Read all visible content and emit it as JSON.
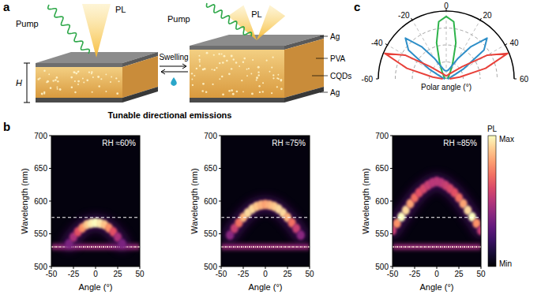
{
  "panels": [
    "a",
    "b",
    "c"
  ],
  "diagram": {
    "pump": "Pump",
    "pl": "PL",
    "height": "H",
    "process": "Swelling",
    "layers": [
      "Ag",
      "PVA",
      "CQDs",
      "Ag"
    ],
    "caption": "Tunable directional emissions"
  },
  "chart_data": [
    {
      "type": "heatmap",
      "annotation": "RH ≈60%",
      "xlabel": "Angle (°)",
      "ylabel": "Wavelength (nm)",
      "xlim": [
        -50,
        50
      ],
      "xticks": [
        -50,
        -25,
        0,
        25,
        50
      ],
      "ylim": [
        500,
        700
      ],
      "yticks": [
        500,
        550,
        600,
        650,
        700
      ],
      "x": [
        -30,
        -25,
        -20,
        -15,
        -10,
        -5,
        0,
        5,
        10,
        15,
        20,
        25,
        30
      ],
      "values": [
        535,
        545,
        553,
        559,
        564,
        566,
        567,
        566,
        564,
        559,
        553,
        545,
        535
      ],
      "intensity": [
        0.15,
        0.3,
        0.5,
        0.7,
        0.85,
        0.95,
        1,
        0.95,
        0.85,
        0.7,
        0.5,
        0.3,
        0.15
      ],
      "pump_wavelength": 530,
      "reference_line": 575
    },
    {
      "type": "heatmap",
      "annotation": "RH ≈75%",
      "xlabel": "Angle (°)",
      "ylabel": "Wavelength (nm)",
      "xlim": [
        -50,
        50
      ],
      "xticks": [
        -50,
        -25,
        0,
        25,
        50
      ],
      "ylim": [
        500,
        700
      ],
      "yticks": [
        500,
        550,
        600,
        650,
        700
      ],
      "x": [
        -40,
        -35,
        -30,
        -25,
        -20,
        -15,
        -10,
        -5,
        0,
        5,
        10,
        15,
        20,
        25,
        30,
        35,
        40
      ],
      "values": [
        548,
        558,
        567,
        575,
        582,
        588,
        592,
        594,
        595,
        594,
        592,
        588,
        582,
        575,
        567,
        558,
        548
      ],
      "intensity": [
        0.2,
        0.4,
        0.6,
        0.8,
        0.9,
        0.9,
        0.85,
        0.8,
        0.75,
        0.8,
        0.85,
        0.9,
        0.9,
        0.8,
        0.6,
        0.4,
        0.2
      ],
      "pump_wavelength": 530,
      "reference_line": 575
    },
    {
      "type": "heatmap",
      "annotation": "RH ≈85%",
      "xlabel": "Angle (°)",
      "ylabel": "Wavelength (nm)",
      "xlim": [
        -50,
        50
      ],
      "xticks": [
        -50,
        -25,
        0,
        25,
        50
      ],
      "ylim": [
        500,
        700
      ],
      "yticks": [
        500,
        550,
        600,
        650,
        700
      ],
      "x": [
        -50,
        -45,
        -40,
        -35,
        -30,
        -25,
        -20,
        -15,
        -10,
        -5,
        0,
        5,
        10,
        15,
        20,
        25,
        30,
        35,
        40,
        45,
        50
      ],
      "values": [
        555,
        566,
        576,
        586,
        596,
        605,
        613,
        619,
        624,
        628,
        630,
        628,
        624,
        619,
        613,
        605,
        596,
        586,
        576,
        566,
        555
      ],
      "intensity": [
        0.4,
        0.7,
        1,
        0.9,
        0.75,
        0.6,
        0.5,
        0.45,
        0.4,
        0.35,
        0.35,
        0.35,
        0.4,
        0.45,
        0.5,
        0.6,
        0.75,
        0.9,
        1,
        0.7,
        0.4
      ],
      "pump_wavelength": 530,
      "reference_line": 575,
      "colorbar": {
        "label": "PL",
        "ticks": [
          {
            "value": 0,
            "label": "Min"
          },
          {
            "value": 1,
            "label": "Max"
          }
        ]
      }
    },
    {
      "type": "polar",
      "xlabel": "Polar angle (°)",
      "xlim": [
        -60,
        60
      ],
      "xticks": [
        -60,
        -40,
        -20,
        0,
        20,
        40,
        60
      ],
      "ylim": [
        0,
        1
      ],
      "yticks": [
        0.25,
        0.5,
        0.75,
        1
      ],
      "tick_labels": "x",
      "grid": true,
      "x": [
        -60,
        -55,
        -50,
        -45,
        -40,
        -35,
        -30,
        -25,
        -20,
        -15,
        -10,
        -5,
        0,
        5,
        10,
        15,
        20,
        25,
        30,
        35,
        40,
        45,
        50,
        55,
        60
      ],
      "series": [
        {
          "color": "#2db34a",
          "values": [
            0.02,
            0.02,
            0.02,
            0.03,
            0.03,
            0.04,
            0.05,
            0.07,
            0.12,
            0.25,
            0.55,
            0.85,
            0.92,
            0.85,
            0.55,
            0.25,
            0.12,
            0.07,
            0.05,
            0.04,
            0.03,
            0.03,
            0.02,
            0.02,
            0.02
          ]
        },
        {
          "color": "#2f8fc8",
          "values": [
            0.02,
            0.03,
            0.05,
            0.1,
            0.3,
            0.7,
            0.85,
            0.6,
            0.35,
            0.2,
            0.14,
            0.12,
            0.12,
            0.12,
            0.14,
            0.2,
            0.35,
            0.6,
            0.85,
            0.7,
            0.3,
            0.1,
            0.05,
            0.03,
            0.02
          ]
        },
        {
          "color": "#e8413a",
          "values": [
            0.05,
            0.2,
            0.6,
            0.98,
            0.7,
            0.3,
            0.15,
            0.1,
            0.08,
            0.06,
            0.05,
            0.05,
            0.05,
            0.05,
            0.05,
            0.06,
            0.08,
            0.1,
            0.15,
            0.3,
            0.7,
            0.98,
            0.6,
            0.2,
            0.05
          ]
        }
      ]
    }
  ]
}
